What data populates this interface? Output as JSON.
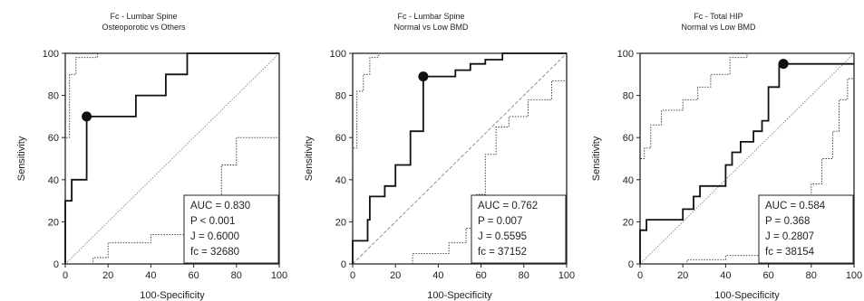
{
  "chart_data": [
    {
      "type": "line",
      "title": "Fc - Lumbar Spine",
      "subtitle": "Osteoporotic vs Others",
      "xlabel": "100-Specificity",
      "ylabel": "Sensitivity",
      "xlim": [
        0,
        100
      ],
      "ylim": [
        0,
        100
      ],
      "x_ticks": [
        "0",
        "20",
        "40",
        "60",
        "80",
        "100"
      ],
      "y_ticks": [
        "0",
        "20",
        "40",
        "60",
        "80",
        "100"
      ],
      "reference_line": "diagonal",
      "roc_curve": [
        [
          0,
          0
        ],
        [
          0,
          30
        ],
        [
          3,
          30
        ],
        [
          3,
          40
        ],
        [
          10,
          40
        ],
        [
          10,
          70
        ],
        [
          33,
          70
        ],
        [
          33,
          80
        ],
        [
          47,
          80
        ],
        [
          47,
          90
        ],
        [
          57,
          90
        ],
        [
          57,
          100
        ],
        [
          100,
          100
        ]
      ],
      "ci_upper": [
        [
          0,
          0
        ],
        [
          0,
          60
        ],
        [
          2,
          60
        ],
        [
          2,
          90
        ],
        [
          5,
          90
        ],
        [
          5,
          98
        ],
        [
          15,
          98
        ],
        [
          15,
          100
        ],
        [
          100,
          100
        ]
      ],
      "ci_lower": [
        [
          0,
          0
        ],
        [
          13,
          0
        ],
        [
          13,
          3
        ],
        [
          20,
          3
        ],
        [
          20,
          10
        ],
        [
          40,
          10
        ],
        [
          40,
          14
        ],
        [
          57,
          14
        ],
        [
          57,
          22
        ],
        [
          63,
          22
        ],
        [
          63,
          30
        ],
        [
          73,
          30
        ],
        [
          73,
          47
        ],
        [
          80,
          47
        ],
        [
          80,
          60
        ],
        [
          100,
          60
        ]
      ],
      "optimal_point": [
        10,
        70
      ],
      "stats": [
        "AUC = 0.830",
        "P < 0.001",
        "J = 0.6000",
        "fc = 32680"
      ]
    },
    {
      "type": "line",
      "title": "Fc - Lumbar Spine",
      "subtitle": "Normal vs Low BMD",
      "xlabel": "100-Specificity",
      "ylabel": "Sensitivity",
      "xlim": [
        0,
        100
      ],
      "ylim": [
        0,
        100
      ],
      "x_ticks": [
        "0",
        "20",
        "40",
        "60",
        "80",
        "100"
      ],
      "y_ticks": [
        "0",
        "20",
        "40",
        "60",
        "80",
        "100"
      ],
      "reference_line": "diagonal",
      "roc_curve": [
        [
          0,
          0
        ],
        [
          0,
          11
        ],
        [
          7,
          11
        ],
        [
          7,
          21
        ],
        [
          8,
          21
        ],
        [
          8,
          32
        ],
        [
          15,
          32
        ],
        [
          15,
          37
        ],
        [
          20,
          37
        ],
        [
          20,
          47
        ],
        [
          27,
          47
        ],
        [
          27,
          63
        ],
        [
          33,
          63
        ],
        [
          33,
          89
        ],
        [
          48,
          89
        ],
        [
          48,
          92
        ],
        [
          55,
          92
        ],
        [
          55,
          95
        ],
        [
          62,
          95
        ],
        [
          62,
          97
        ],
        [
          70,
          97
        ],
        [
          70,
          100
        ],
        [
          100,
          100
        ]
      ],
      "ci_upper": [
        [
          0,
          0
        ],
        [
          0,
          55
        ],
        [
          2,
          55
        ],
        [
          2,
          82
        ],
        [
          5,
          82
        ],
        [
          5,
          90
        ],
        [
          8,
          90
        ],
        [
          8,
          98
        ],
        [
          12,
          98
        ],
        [
          12,
          100
        ],
        [
          100,
          100
        ]
      ],
      "ci_lower": [
        [
          0,
          0
        ],
        [
          28,
          0
        ],
        [
          28,
          5
        ],
        [
          45,
          5
        ],
        [
          45,
          10
        ],
        [
          53,
          10
        ],
        [
          53,
          17
        ],
        [
          58,
          17
        ],
        [
          58,
          33
        ],
        [
          62,
          33
        ],
        [
          62,
          52
        ],
        [
          67,
          52
        ],
        [
          67,
          65
        ],
        [
          73,
          65
        ],
        [
          73,
          70
        ],
        [
          82,
          70
        ],
        [
          82,
          78
        ],
        [
          93,
          78
        ],
        [
          93,
          87
        ],
        [
          100,
          87
        ]
      ],
      "optimal_point": [
        33,
        89
      ],
      "stats": [
        "AUC = 0.762",
        "P = 0.007",
        "J = 0.5595",
        "fc = 37152"
      ]
    },
    {
      "type": "line",
      "title": "Fc - Total HIP",
      "subtitle": "Normal vs Low BMD",
      "xlabel": "100-Specificity",
      "ylabel": "Sensitivity",
      "xlim": [
        0,
        100
      ],
      "ylim": [
        0,
        100
      ],
      "x_ticks": [
        "0",
        "20",
        "40",
        "60",
        "80",
        "100"
      ],
      "y_ticks": [
        "0",
        "20",
        "40",
        "60",
        "80",
        "100"
      ],
      "reference_line": "diagonal",
      "roc_curve": [
        [
          0,
          0
        ],
        [
          0,
          16
        ],
        [
          3,
          16
        ],
        [
          3,
          21
        ],
        [
          20,
          21
        ],
        [
          20,
          26
        ],
        [
          25,
          26
        ],
        [
          25,
          32
        ],
        [
          28,
          32
        ],
        [
          28,
          37
        ],
        [
          40,
          37
        ],
        [
          40,
          47
        ],
        [
          43,
          47
        ],
        [
          43,
          53
        ],
        [
          47,
          53
        ],
        [
          47,
          58
        ],
        [
          53,
          58
        ],
        [
          53,
          63
        ],
        [
          57,
          63
        ],
        [
          57,
          68
        ],
        [
          60,
          68
        ],
        [
          60,
          84
        ],
        [
          65,
          84
        ],
        [
          65,
          95
        ],
        [
          100,
          95
        ]
      ],
      "ci_upper": [
        [
          0,
          0
        ],
        [
          0,
          50
        ],
        [
          2,
          50
        ],
        [
          2,
          55
        ],
        [
          5,
          55
        ],
        [
          5,
          66
        ],
        [
          10,
          66
        ],
        [
          10,
          73
        ],
        [
          20,
          73
        ],
        [
          20,
          78
        ],
        [
          27,
          78
        ],
        [
          27,
          84
        ],
        [
          33,
          84
        ],
        [
          33,
          90
        ],
        [
          42,
          90
        ],
        [
          42,
          98
        ],
        [
          50,
          98
        ],
        [
          50,
          100
        ],
        [
          100,
          100
        ]
      ],
      "ci_lower": [
        [
          0,
          0
        ],
        [
          22,
          0
        ],
        [
          22,
          2
        ],
        [
          40,
          2
        ],
        [
          40,
          4
        ],
        [
          60,
          4
        ],
        [
          60,
          8
        ],
        [
          70,
          8
        ],
        [
          70,
          12
        ],
        [
          75,
          12
        ],
        [
          75,
          23
        ],
        [
          80,
          23
        ],
        [
          80,
          38
        ],
        [
          85,
          38
        ],
        [
          85,
          50
        ],
        [
          90,
          50
        ],
        [
          90,
          63
        ],
        [
          93,
          63
        ],
        [
          93,
          78
        ],
        [
          97,
          78
        ],
        [
          97,
          88
        ],
        [
          100,
          88
        ]
      ],
      "optimal_point": [
        67,
        95
      ],
      "stats": [
        "AUC = 0.584",
        "P = 0.368",
        "J = 0.2807",
        "fc = 38154"
      ]
    }
  ]
}
